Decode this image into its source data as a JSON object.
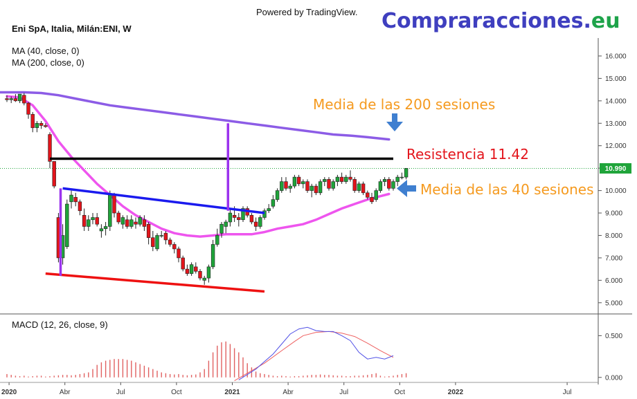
{
  "header": {
    "powered_by": "Powered by TradingView.",
    "brand_main": "Compraracciones",
    "brand_dot": ".",
    "brand_tld": "eu",
    "symbol_title": "Eni SpA, Italia, Milán:ENI, W",
    "ma40_label": "MA (40, close, 0)",
    "ma200_label": "MA (200, close, 0)",
    "macd_label": "MACD (12, 26, close, 9)"
  },
  "annotations": {
    "ma200_text": "Media de las 200 sesiones",
    "resistance_text": "Resistencia 11.42",
    "ma40_text": "Media de las 40 sesiones"
  },
  "colors": {
    "up": "#1fa43a",
    "down": "#e3141b",
    "ma40": "#ee55ee",
    "ma200": "#8c5ce6",
    "resistance": "#000000",
    "channel_top": "#1a1aee",
    "channel_bottom": "#ee1111",
    "vertical_purple": "#9b33ee",
    "arrow": "#3f7fd0",
    "macd": "#5050e6",
    "signal": "#ee6060",
    "hist": "#e06060",
    "price_badge": "#1fa43a"
  },
  "chart_data": [
    {
      "type": "candlestick",
      "name": "price",
      "ylim": [
        4.5,
        16.8
      ],
      "y_ticks": [
        5,
        6,
        7,
        8,
        9,
        10,
        11,
        12,
        13,
        14,
        15,
        16
      ],
      "y_tick_labels": [
        "5.000",
        "6.000",
        "7.000",
        "8.000",
        "9.000",
        "10.000",
        "11.000",
        "12.000",
        "13.000",
        "14.000",
        "15.000",
        "16.000"
      ],
      "last_price": 10.99,
      "last_price_label": "10.990",
      "resistance": 11.42,
      "x_ticks": [
        {
          "label": "2020",
          "week": 0.5,
          "bold": true
        },
        {
          "label": "Abr",
          "week": 13.5,
          "bold": false
        },
        {
          "label": "Jul",
          "week": 26.5,
          "bold": false
        },
        {
          "label": "Oct",
          "week": 39.5,
          "bold": false
        },
        {
          "label": "2021",
          "week": 52.5,
          "bold": true
        },
        {
          "label": "Abr",
          "week": 65.5,
          "bold": false
        },
        {
          "label": "Jul",
          "week": 78.5,
          "bold": false
        },
        {
          "label": "Oct",
          "week": 91.5,
          "bold": false
        },
        {
          "label": "2022",
          "week": 104.5,
          "bold": true
        },
        {
          "label": "Jul",
          "week": 130.5,
          "bold": false
        }
      ],
      "candles_ohlc": [
        [
          14.1,
          14.25,
          13.95,
          14.05
        ],
        [
          14.05,
          14.2,
          13.9,
          14.1
        ],
        [
          14.1,
          14.3,
          13.95,
          14.0
        ],
        [
          14.0,
          14.3,
          13.9,
          14.3
        ],
        [
          14.25,
          14.35,
          13.8,
          13.9
        ],
        [
          13.9,
          13.95,
          13.2,
          13.4
        ],
        [
          13.4,
          13.5,
          12.6,
          12.8
        ],
        [
          12.8,
          13.1,
          12.6,
          13.0
        ],
        [
          13.0,
          13.1,
          12.75,
          12.9
        ],
        [
          12.9,
          13.0,
          12.8,
          12.85
        ],
        [
          12.5,
          12.6,
          11.0,
          11.3
        ],
        [
          11.3,
          11.3,
          10.1,
          10.2
        ],
        [
          8.8,
          9.0,
          6.8,
          7.0
        ],
        [
          7.0,
          8.5,
          6.7,
          8.0
        ],
        [
          7.5,
          9.6,
          7.4,
          9.4
        ],
        [
          9.5,
          10.0,
          9.2,
          9.8
        ],
        [
          9.7,
          9.9,
          9.3,
          9.5
        ],
        [
          9.5,
          9.6,
          8.9,
          9.1
        ],
        [
          8.9,
          9.2,
          8.2,
          8.4
        ],
        [
          8.4,
          8.9,
          8.2,
          8.7
        ],
        [
          8.7,
          9.0,
          8.5,
          8.8
        ],
        [
          8.8,
          9.0,
          8.4,
          8.5
        ],
        [
          8.2,
          8.5,
          7.9,
          8.3
        ],
        [
          8.3,
          8.6,
          8.0,
          8.4
        ],
        [
          8.4,
          10.0,
          8.2,
          9.8
        ],
        [
          9.8,
          9.9,
          8.8,
          9.0
        ],
        [
          9.0,
          9.1,
          8.5,
          8.6
        ],
        [
          8.5,
          8.9,
          8.3,
          8.8
        ],
        [
          8.7,
          8.9,
          8.3,
          8.4
        ],
        [
          8.4,
          8.9,
          8.3,
          8.7
        ],
        [
          8.6,
          8.8,
          8.3,
          8.5
        ],
        [
          8.5,
          8.9,
          8.4,
          8.8
        ],
        [
          8.7,
          8.9,
          8.2,
          8.4
        ],
        [
          8.5,
          8.6,
          7.6,
          7.9
        ],
        [
          7.9,
          8.2,
          7.3,
          7.5
        ],
        [
          7.4,
          8.1,
          7.3,
          8.0
        ],
        [
          8.0,
          8.2,
          7.9,
          8.0
        ],
        [
          8.1,
          8.2,
          7.6,
          7.8
        ],
        [
          7.8,
          7.9,
          7.5,
          7.6
        ],
        [
          7.6,
          7.7,
          7.2,
          7.4
        ],
        [
          7.4,
          7.5,
          6.8,
          7.0
        ],
        [
          7.0,
          7.1,
          6.4,
          6.5
        ],
        [
          6.5,
          6.7,
          6.2,
          6.3
        ],
        [
          6.3,
          6.8,
          6.2,
          6.7
        ],
        [
          6.6,
          6.8,
          6.3,
          6.4
        ],
        [
          6.4,
          6.5,
          6.0,
          6.1
        ],
        [
          6.0,
          6.2,
          5.8,
          6.1
        ],
        [
          6.1,
          6.7,
          5.9,
          6.6
        ],
        [
          6.6,
          7.8,
          6.5,
          7.6
        ],
        [
          7.6,
          8.3,
          7.5,
          8.0
        ],
        [
          8.1,
          8.6,
          7.9,
          8.5
        ],
        [
          8.4,
          8.7,
          8.1,
          8.6
        ],
        [
          8.6,
          9.2,
          8.4,
          9.0
        ],
        [
          8.9,
          9.3,
          8.6,
          8.8
        ],
        [
          8.8,
          9.0,
          8.4,
          8.7
        ],
        [
          8.7,
          9.3,
          8.6,
          9.2
        ],
        [
          9.2,
          9.3,
          8.8,
          8.9
        ],
        [
          8.9,
          9.0,
          8.5,
          8.6
        ],
        [
          8.6,
          8.8,
          8.2,
          8.4
        ],
        [
          8.4,
          8.9,
          8.3,
          8.8
        ],
        [
          8.8,
          9.2,
          8.7,
          9.1
        ],
        [
          9.1,
          9.4,
          9.0,
          9.2
        ],
        [
          9.3,
          9.8,
          9.2,
          9.6
        ],
        [
          9.6,
          10.1,
          9.5,
          10.0
        ],
        [
          10.0,
          10.6,
          9.9,
          10.4
        ],
        [
          10.4,
          10.6,
          10.0,
          10.1
        ],
        [
          10.1,
          10.3,
          9.9,
          10.2
        ],
        [
          10.2,
          10.7,
          10.1,
          10.6
        ],
        [
          10.6,
          10.7,
          10.2,
          10.3
        ],
        [
          10.3,
          10.5,
          10.1,
          10.4
        ],
        [
          10.4,
          10.5,
          9.9,
          10.0
        ],
        [
          10.0,
          10.3,
          9.7,
          10.2
        ],
        [
          10.2,
          10.3,
          9.8,
          9.9
        ],
        [
          9.9,
          10.5,
          9.8,
          10.4
        ],
        [
          10.4,
          10.6,
          10.2,
          10.5
        ],
        [
          10.5,
          10.6,
          10.0,
          10.1
        ],
        [
          10.1,
          10.5,
          10.0,
          10.4
        ],
        [
          10.4,
          10.7,
          10.2,
          10.6
        ],
        [
          10.6,
          10.8,
          10.3,
          10.4
        ],
        [
          10.4,
          10.7,
          10.3,
          10.6
        ],
        [
          10.6,
          10.9,
          10.4,
          10.5
        ],
        [
          10.5,
          10.6,
          9.9,
          10.0
        ],
        [
          10.0,
          10.4,
          9.9,
          10.3
        ],
        [
          10.3,
          10.4,
          9.8,
          9.9
        ],
        [
          9.9,
          10.0,
          9.6,
          9.7
        ],
        [
          9.7,
          9.9,
          9.4,
          9.5
        ],
        [
          9.6,
          10.1,
          9.5,
          10.0
        ],
        [
          10.0,
          10.5,
          9.9,
          10.4
        ],
        [
          10.4,
          10.6,
          10.2,
          10.5
        ],
        [
          10.5,
          10.6,
          10.0,
          10.1
        ],
        [
          10.1,
          10.5,
          10.0,
          10.4
        ],
        [
          10.4,
          10.7,
          10.2,
          10.6
        ],
        [
          10.6,
          10.8,
          10.5,
          10.6
        ],
        [
          10.6,
          11.0,
          10.5,
          10.99
        ]
      ],
      "ma40": [
        [
          0,
          14.2
        ],
        [
          3,
          14.15
        ],
        [
          6,
          13.8
        ],
        [
          9,
          13.1
        ],
        [
          12,
          12.2
        ],
        [
          15,
          11.5
        ],
        [
          18,
          10.9
        ],
        [
          21,
          10.3
        ],
        [
          24,
          9.8
        ],
        [
          27,
          9.3
        ],
        [
          30,
          8.9
        ],
        [
          33,
          8.6
        ],
        [
          36,
          8.3
        ],
        [
          39,
          8.1
        ],
        [
          42,
          8.0
        ],
        [
          45,
          7.95
        ],
        [
          48,
          8.0
        ],
        [
          51,
          8.05
        ],
        [
          54,
          8.05
        ],
        [
          57,
          8.05
        ],
        [
          60,
          8.15
        ],
        [
          63,
          8.3
        ],
        [
          66,
          8.4
        ],
        [
          69,
          8.5
        ],
        [
          72,
          8.7
        ],
        [
          75,
          8.95
        ],
        [
          78,
          9.2
        ],
        [
          81,
          9.4
        ],
        [
          84,
          9.6
        ],
        [
          87,
          9.75
        ],
        [
          89,
          9.85
        ]
      ],
      "ma200": [
        [
          -2,
          14.38
        ],
        [
          4,
          14.38
        ],
        [
          8,
          14.35
        ],
        [
          12,
          14.25
        ],
        [
          16,
          14.1
        ],
        [
          20,
          13.95
        ],
        [
          24,
          13.8
        ],
        [
          28,
          13.7
        ],
        [
          32,
          13.6
        ],
        [
          36,
          13.5
        ],
        [
          40,
          13.4
        ],
        [
          44,
          13.3
        ],
        [
          48,
          13.2
        ],
        [
          52,
          13.1
        ],
        [
          56,
          13.0
        ],
        [
          60,
          12.9
        ],
        [
          64,
          12.8
        ],
        [
          68,
          12.7
        ],
        [
          72,
          12.6
        ],
        [
          76,
          12.5
        ],
        [
          80,
          12.45
        ],
        [
          84,
          12.38
        ],
        [
          88,
          12.3
        ],
        [
          89,
          12.28
        ]
      ],
      "channel_top": [
        [
          13,
          10.1
        ],
        [
          60,
          9.0
        ]
      ],
      "channel_bottom": [
        [
          9,
          6.3
        ],
        [
          60,
          5.5
        ]
      ],
      "resistance_segment": [
        [
          10,
          11.42
        ],
        [
          90,
          11.42
        ]
      ],
      "vertical_line_1": [
        12.5,
        6.2,
        10.1
      ],
      "vertical_line_2": [
        51.5,
        9.1,
        13.0
      ]
    },
    {
      "type": "macd",
      "name": "MACD",
      "ylim": [
        -0.06,
        0.76
      ],
      "y_ticks": [
        0.0,
        0.5
      ],
      "y_tick_labels": [
        "0.000",
        "0.500"
      ],
      "histogram": [
        0.04,
        0.03,
        0.02,
        0.015,
        0.02,
        0.01,
        0.015,
        0.02,
        0.02,
        0.01,
        0.015,
        0.02,
        0.025,
        0.03,
        0.03,
        0.025,
        0.03,
        0.04,
        0.05,
        0.06,
        0.1,
        0.15,
        0.18,
        0.2,
        0.21,
        0.22,
        0.22,
        0.22,
        0.21,
        0.2,
        0.18,
        0.16,
        0.14,
        0.12,
        0.1,
        0.08,
        0.06,
        0.05,
        0.04,
        0.035,
        0.04,
        0.03,
        0.025,
        0.03,
        0.035,
        0.06,
        0.1,
        0.2,
        0.3,
        0.38,
        0.42,
        0.43,
        0.4,
        0.35,
        0.3,
        0.24,
        0.17,
        0.12,
        0.07,
        0.05,
        0.04,
        0.03,
        0.02,
        0.015,
        0.02,
        0.015,
        0.01,
        0.015,
        0.015,
        0.02,
        0.025,
        0.03,
        0.03,
        0.035,
        0.03,
        0.03,
        0.025,
        0.02,
        0.02,
        0.015,
        0.015,
        0.02,
        0.02,
        0.025,
        0.03,
        0.04,
        0.05,
        0.02,
        0.01,
        0.015,
        0.02,
        0.03,
        0.04,
        0.05
      ],
      "macd_line": [
        [
          54,
          -0.03
        ],
        [
          58,
          0.1
        ],
        [
          62,
          0.28
        ],
        [
          64,
          0.4
        ],
        [
          66,
          0.52
        ],
        [
          68,
          0.58
        ],
        [
          70,
          0.6
        ],
        [
          72,
          0.56
        ],
        [
          74,
          0.55
        ],
        [
          76,
          0.55
        ],
        [
          78,
          0.5
        ],
        [
          80,
          0.44
        ],
        [
          82,
          0.3
        ],
        [
          84,
          0.22
        ],
        [
          86,
          0.24
        ],
        [
          88,
          0.22
        ],
        [
          90,
          0.26
        ]
      ],
      "signal_line": [
        [
          53,
          -0.04
        ],
        [
          56,
          0.05
        ],
        [
          60,
          0.17
        ],
        [
          64,
          0.32
        ],
        [
          67,
          0.43
        ],
        [
          69,
          0.5
        ],
        [
          72,
          0.54
        ],
        [
          75,
          0.55
        ],
        [
          78,
          0.53
        ],
        [
          81,
          0.49
        ],
        [
          84,
          0.41
        ],
        [
          87,
          0.32
        ],
        [
          90,
          0.24
        ]
      ]
    }
  ]
}
